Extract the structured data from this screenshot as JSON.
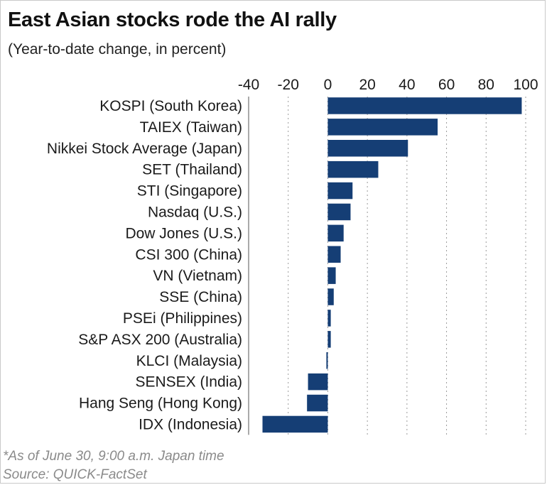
{
  "header": {
    "title": "East Asian stocks rode the AI rally",
    "subtitle": "(Year-to-date change, in percent)"
  },
  "footer": {
    "note": "*As of June 30, 9:00 a.m. Japan time",
    "source": "Source: QUICK-FactSet"
  },
  "chart_data": {
    "type": "bar",
    "orientation": "horizontal",
    "title": "East Asian stocks rode the AI rally",
    "subtitle": "(Year-to-date change, in percent)",
    "xlabel": "",
    "ylabel": "",
    "xlim": [
      -40,
      100
    ],
    "ticks": [
      -40,
      -20,
      0,
      20,
      40,
      60,
      80,
      100
    ],
    "tick_labels": [
      "-40",
      "-20",
      "0",
      "20",
      "40",
      "60",
      "80",
      "100"
    ],
    "grid": true,
    "legend": "none",
    "bar_color": "#153e75",
    "categories": [
      "KOSPI (South Korea)",
      "TAIEX (Taiwan)",
      "Nikkei Stock Average (Japan)",
      "SET (Thailand)",
      "STI (Singapore)",
      "Nasdaq (U.S.)",
      "Dow Jones (U.S.)",
      "CSI 300 (China)",
      "VN (Vietnam)",
      "SSE (China)",
      "PSEi (Philippines)",
      "S&P ASX 200 (Australia)",
      "KLCI (Malaysia)",
      "SENSEX (India)",
      "Hang Seng (Hong Kong)",
      "IDX (Indonesia)"
    ],
    "values": [
      98,
      55.5,
      40.5,
      25.5,
      12.5,
      11.5,
      8,
      6.5,
      4,
      3,
      1.5,
      1.5,
      -0.5,
      -10,
      -10.5,
      -33
    ]
  }
}
